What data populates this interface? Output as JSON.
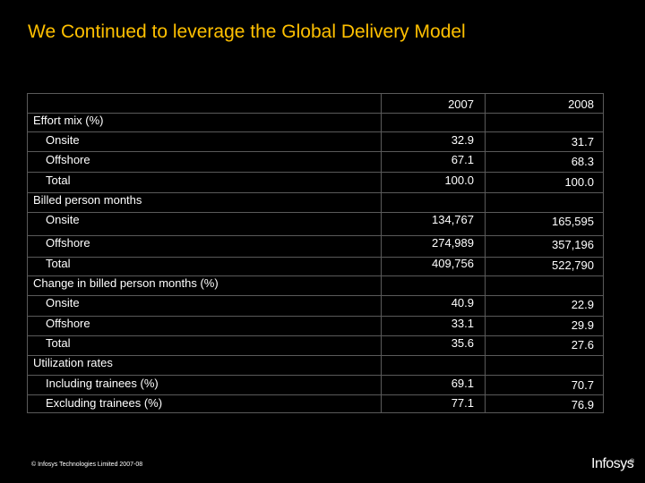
{
  "title": "We Continued to leverage the Global Delivery Model",
  "table": {
    "headers": [
      "2007",
      "2008"
    ],
    "rows": [
      {
        "label": "Effort mix (%)",
        "level": 0,
        "v2007": "",
        "v2008": ""
      },
      {
        "label": "Onsite",
        "level": 1,
        "v2007": "32.9",
        "v2008": "31.7"
      },
      {
        "label": "Offshore",
        "level": 1,
        "v2007": "67.1",
        "v2008": "68.3"
      },
      {
        "label": "Total",
        "level": 1,
        "v2007": "100.0",
        "v2008": "100.0"
      },
      {
        "label": "Billed person months",
        "level": 0,
        "v2007": "",
        "v2008": ""
      },
      {
        "label": "Onsite",
        "level": 1,
        "v2007": "134,767",
        "v2008": "165,595"
      },
      {
        "label": "Offshore",
        "level": 1,
        "v2007": "274,989",
        "v2008": "357,196"
      },
      {
        "label": "Total",
        "level": 1,
        "v2007": "409,756",
        "v2008": "522,790"
      },
      {
        "label": "Change in billed person months (%)",
        "level": 0,
        "v2007": "",
        "v2008": ""
      },
      {
        "label": "Onsite",
        "level": 1,
        "v2007": "40.9",
        "v2008": "22.9"
      },
      {
        "label": "Offshore",
        "level": 1,
        "v2007": "33.1",
        "v2008": "29.9"
      },
      {
        "label": "Total",
        "level": 1,
        "v2007": "35.6",
        "v2008": "27.6"
      },
      {
        "label": "Utilization rates",
        "level": 0,
        "v2007": "",
        "v2008": ""
      },
      {
        "label": "Including trainees (%)",
        "level": 1,
        "v2007": "69.1",
        "v2008": "70.7"
      },
      {
        "label": "Excluding trainees (%)",
        "level": 1,
        "v2007": "77.1",
        "v2008": "76.9"
      }
    ]
  },
  "footer": "© Infosys Technologies Limited 2007-08",
  "logo": {
    "text": "Infosys",
    "mark": "®"
  },
  "colors": {
    "background": "#000000",
    "title": "#ffc000",
    "text": "#ffffff",
    "border": "#5a5a5a"
  }
}
